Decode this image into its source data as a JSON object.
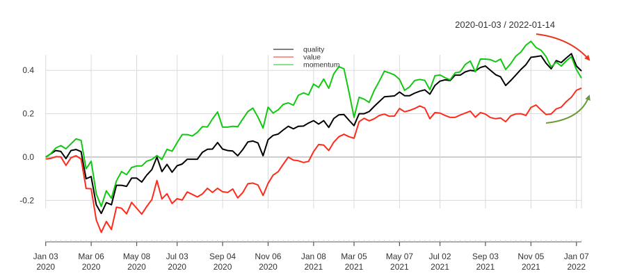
{
  "chart_data": {
    "type": "line",
    "title": "2020-01-03 / 2022-01-14",
    "xlabel": "",
    "ylabel": "",
    "ylim": [
      -0.38,
      0.47
    ],
    "grid": true,
    "legend_position": "top-center",
    "y_ticks": [
      {
        "value": 0.4,
        "label": "0.4"
      },
      {
        "value": 0.2,
        "label": "0.2"
      },
      {
        "value": 0.0,
        "label": "0.0"
      },
      {
        "value": -0.2,
        "label": "-0.2"
      }
    ],
    "x_ticks": [
      {
        "date": "2020-01-03",
        "line1": "Jan 03",
        "line2": "2020"
      },
      {
        "date": "2020-03-06",
        "line1": "Mar 06",
        "line2": "2020"
      },
      {
        "date": "2020-05-08",
        "line1": "May 08",
        "line2": "2020"
      },
      {
        "date": "2020-07-03",
        "line1": "Jul 03",
        "line2": "2020"
      },
      {
        "date": "2020-09-04",
        "line1": "Sep 04",
        "line2": "2020"
      },
      {
        "date": "2020-11-06",
        "line1": "Nov 06",
        "line2": "2020"
      },
      {
        "date": "2021-01-08",
        "line1": "Jan 08",
        "line2": "2021"
      },
      {
        "date": "2021-03-05",
        "line1": "Mar 05",
        "line2": "2021"
      },
      {
        "date": "2021-05-07",
        "line1": "May 07",
        "line2": "2021"
      },
      {
        "date": "2021-07-02",
        "line1": "Jul 02",
        "line2": "2021"
      },
      {
        "date": "2021-09-03",
        "line1": "Sep 03",
        "line2": "2021"
      },
      {
        "date": "2021-11-05",
        "line1": "Nov 05",
        "line2": "2021"
      },
      {
        "date": "2022-01-07",
        "line1": "Jan 07",
        "line2": "2022"
      }
    ],
    "x": [
      "2020-01-03",
      "2020-01-10",
      "2020-01-17",
      "2020-01-24",
      "2020-01-31",
      "2020-02-07",
      "2020-02-14",
      "2020-02-21",
      "2020-02-28",
      "2020-03-06",
      "2020-03-13",
      "2020-03-20",
      "2020-03-27",
      "2020-04-03",
      "2020-04-10",
      "2020-04-17",
      "2020-04-24",
      "2020-05-01",
      "2020-05-08",
      "2020-05-15",
      "2020-05-22",
      "2020-05-29",
      "2020-06-05",
      "2020-06-12",
      "2020-06-19",
      "2020-06-26",
      "2020-07-03",
      "2020-07-10",
      "2020-07-17",
      "2020-07-24",
      "2020-07-31",
      "2020-08-07",
      "2020-08-14",
      "2020-08-21",
      "2020-08-28",
      "2020-09-04",
      "2020-09-11",
      "2020-09-18",
      "2020-09-25",
      "2020-10-02",
      "2020-10-09",
      "2020-10-16",
      "2020-10-23",
      "2020-10-30",
      "2020-11-06",
      "2020-11-13",
      "2020-11-20",
      "2020-11-27",
      "2020-12-04",
      "2020-12-11",
      "2020-12-18",
      "2020-12-25",
      "2021-01-01",
      "2021-01-08",
      "2021-01-15",
      "2021-01-22",
      "2021-01-29",
      "2021-02-05",
      "2021-02-12",
      "2021-02-19",
      "2021-02-26",
      "2021-03-05",
      "2021-03-12",
      "2021-03-19",
      "2021-03-26",
      "2021-04-02",
      "2021-04-09",
      "2021-04-16",
      "2021-04-23",
      "2021-04-30",
      "2021-05-07",
      "2021-05-14",
      "2021-05-21",
      "2021-05-28",
      "2021-06-04",
      "2021-06-11",
      "2021-06-18",
      "2021-06-25",
      "2021-07-02",
      "2021-07-09",
      "2021-07-16",
      "2021-07-23",
      "2021-07-30",
      "2021-08-06",
      "2021-08-13",
      "2021-08-20",
      "2021-08-27",
      "2021-09-03",
      "2021-09-10",
      "2021-09-17",
      "2021-09-24",
      "2021-10-01",
      "2021-10-08",
      "2021-10-15",
      "2021-10-22",
      "2021-10-29",
      "2021-11-05",
      "2021-11-12",
      "2021-11-19",
      "2021-11-26",
      "2021-12-03",
      "2021-12-10",
      "2021-12-17",
      "2021-12-24",
      "2021-12-31",
      "2022-01-07",
      "2022-01-14"
    ],
    "series": [
      {
        "name": "quality",
        "color": "#000000",
        "values": [
          0.0,
          0.015,
          0.03,
          0.026,
          -0.007,
          0.03,
          0.035,
          0.025,
          -0.1,
          -0.09,
          -0.22,
          -0.26,
          -0.21,
          -0.22,
          -0.13,
          -0.13,
          -0.135,
          -0.097,
          -0.097,
          -0.115,
          -0.083,
          -0.058,
          0.0,
          -0.067,
          -0.034,
          -0.07,
          -0.04,
          -0.032,
          -0.01,
          -0.01,
          -0.01,
          0.022,
          0.036,
          0.037,
          0.067,
          0.037,
          0.03,
          0.028,
          0.006,
          0.035,
          0.07,
          0.074,
          0.065,
          0.006,
          0.08,
          0.1,
          0.106,
          0.125,
          0.142,
          0.13,
          0.142,
          0.143,
          0.157,
          0.168,
          0.152,
          0.168,
          0.137,
          0.178,
          0.195,
          0.196,
          0.17,
          0.145,
          0.2,
          0.2,
          0.21,
          0.234,
          0.256,
          0.278,
          0.28,
          0.282,
          0.3,
          0.283,
          0.283,
          0.295,
          0.304,
          0.31,
          0.29,
          0.33,
          0.35,
          0.356,
          0.353,
          0.378,
          0.378,
          0.393,
          0.4,
          0.397,
          0.413,
          0.42,
          0.4,
          0.38,
          0.37,
          0.33,
          0.353,
          0.378,
          0.404,
          0.426,
          0.46,
          0.463,
          0.467,
          0.433,
          0.407,
          0.445,
          0.436,
          0.457,
          0.477,
          0.42,
          0.397
        ]
      },
      {
        "name": "value",
        "color": "#ff2a1a",
        "values": [
          -0.009,
          -0.006,
          0.002,
          0.001,
          -0.038,
          -0.003,
          0.006,
          -0.009,
          -0.145,
          -0.146,
          -0.29,
          -0.347,
          -0.297,
          -0.334,
          -0.231,
          -0.236,
          -0.262,
          -0.209,
          -0.236,
          -0.263,
          -0.228,
          -0.196,
          -0.108,
          -0.193,
          -0.169,
          -0.214,
          -0.192,
          -0.198,
          -0.161,
          -0.172,
          -0.184,
          -0.17,
          -0.144,
          -0.163,
          -0.144,
          -0.16,
          -0.163,
          -0.147,
          -0.188,
          -0.163,
          -0.123,
          -0.12,
          -0.129,
          -0.177,
          -0.121,
          -0.083,
          -0.067,
          -0.033,
          0.0,
          -0.014,
          -0.017,
          -0.025,
          -0.02,
          0.025,
          0.058,
          0.055,
          0.03,
          0.069,
          0.094,
          0.105,
          0.094,
          0.087,
          0.163,
          0.179,
          0.167,
          0.177,
          0.192,
          0.198,
          0.188,
          0.189,
          0.224,
          0.209,
          0.215,
          0.224,
          0.236,
          0.226,
          0.177,
          0.205,
          0.203,
          0.192,
          0.183,
          0.183,
          0.194,
          0.203,
          0.212,
          0.184,
          0.205,
          0.198,
          0.182,
          0.177,
          0.18,
          0.163,
          0.19,
          0.199,
          0.2,
          0.192,
          0.229,
          0.24,
          0.217,
          0.196,
          0.199,
          0.222,
          0.23,
          0.256,
          0.276,
          0.308,
          0.318
        ]
      },
      {
        "name": "momentum",
        "color": "#11c811",
        "values": [
          0.0,
          0.016,
          0.042,
          0.053,
          0.038,
          0.061,
          0.084,
          0.077,
          -0.054,
          -0.019,
          -0.169,
          -0.228,
          -0.155,
          -0.19,
          -0.11,
          -0.067,
          -0.081,
          -0.048,
          -0.041,
          -0.041,
          -0.019,
          -0.011,
          0.007,
          -0.011,
          0.036,
          0.027,
          0.066,
          0.104,
          0.104,
          0.097,
          0.114,
          0.14,
          0.139,
          0.176,
          0.208,
          0.138,
          0.138,
          0.142,
          0.14,
          0.176,
          0.21,
          0.226,
          0.184,
          0.134,
          0.23,
          0.203,
          0.218,
          0.243,
          0.25,
          0.239,
          0.285,
          0.296,
          0.287,
          0.337,
          0.321,
          0.36,
          0.317,
          0.384,
          0.417,
          0.407,
          0.3,
          0.183,
          0.276,
          0.267,
          0.252,
          0.308,
          0.35,
          0.396,
          0.388,
          0.379,
          0.358,
          0.308,
          0.324,
          0.353,
          0.358,
          0.354,
          0.311,
          0.375,
          0.379,
          0.366,
          0.356,
          0.388,
          0.393,
          0.427,
          0.443,
          0.393,
          0.452,
          0.452,
          0.449,
          0.439,
          0.452,
          0.404,
          0.431,
          0.465,
          0.484,
          0.516,
          0.534,
          0.505,
          0.493,
          0.463,
          0.415,
          0.438,
          0.42,
          0.444,
          0.463,
          0.404,
          0.364
        ]
      }
    ],
    "annotations": [
      {
        "type": "arrow",
        "color": "#e8351e",
        "direction": "down-right"
      },
      {
        "type": "arrow",
        "color": "#6a9a3a",
        "direction": "up-right"
      }
    ]
  }
}
